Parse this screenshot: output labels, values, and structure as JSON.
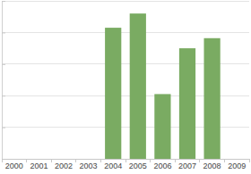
{
  "chart_data": {
    "type": "bar",
    "categories": [
      "2000",
      "2001",
      "2002",
      "2003",
      "2004",
      "2005",
      "2006",
      "2007",
      "2008",
      "2009"
    ],
    "values": [
      null,
      null,
      null,
      null,
      4.15,
      4.6,
      2.05,
      3.5,
      3.82,
      null
    ],
    "color": "#7aab62",
    "ylim": [
      0,
      5
    ],
    "yticks": [
      0,
      1,
      2,
      3,
      4,
      5
    ],
    "grid": true,
    "tick_labels": "x"
  }
}
